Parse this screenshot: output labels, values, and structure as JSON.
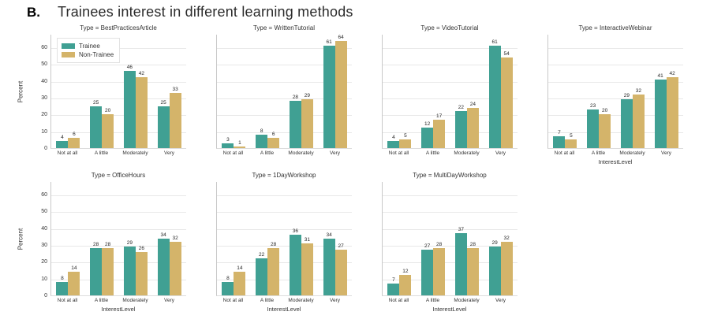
{
  "panel_label": "B.",
  "title": "Trainees interest in different learning methods",
  "legend": {
    "items": [
      {
        "label": "Trainee",
        "color": "#40A093"
      },
      {
        "label": "Non-Trainee",
        "color": "#D4B46A"
      }
    ]
  },
  "colors": {
    "trainee": "#40A093",
    "non_trainee": "#D4B46A",
    "gridline": "#E8E8E8",
    "text": "#333333"
  },
  "chart_data": {
    "type": "bar",
    "categories": [
      "Not at all",
      "A little",
      "Moderately",
      "Very"
    ],
    "xlabel": "InterestLevel",
    "ylabel": "Percent",
    "yticks": [
      0,
      10,
      20,
      30,
      40,
      50,
      60
    ],
    "ylim": [
      0,
      68
    ],
    "grid": "horizontal",
    "legend_position": "upper-left-first-facet",
    "series_names": [
      "Trainee",
      "Non-Trainee"
    ],
    "facets": [
      {
        "title": "Type = BestPracticesArticle",
        "show_xlabel": false,
        "series": [
          {
            "name": "Trainee",
            "values": [
              4,
              25,
              46,
              25
            ]
          },
          {
            "name": "Non-Trainee",
            "values": [
              6,
              20,
              42,
              33
            ]
          }
        ]
      },
      {
        "title": "Type = WrittenTutorial",
        "show_xlabel": false,
        "series": [
          {
            "name": "Trainee",
            "values": [
              3,
              8,
              28,
              61
            ]
          },
          {
            "name": "Non-Trainee",
            "values": [
              1,
              6,
              29,
              64
            ]
          }
        ]
      },
      {
        "title": "Type = VideoTutorial",
        "show_xlabel": false,
        "series": [
          {
            "name": "Trainee",
            "values": [
              4,
              12,
              22,
              61
            ]
          },
          {
            "name": "Non-Trainee",
            "values": [
              5,
              17,
              24,
              54
            ]
          }
        ]
      },
      {
        "title": "Type = InteractiveWebinar",
        "show_xlabel": true,
        "series": [
          {
            "name": "Trainee",
            "values": [
              7,
              23,
              29,
              41
            ]
          },
          {
            "name": "Non-Trainee",
            "values": [
              5,
              20,
              32,
              42
            ]
          }
        ]
      },
      {
        "title": "Type = OfficeHours",
        "show_xlabel": true,
        "series": [
          {
            "name": "Trainee",
            "values": [
              8,
              28,
              29,
              34
            ]
          },
          {
            "name": "Non-Trainee",
            "values": [
              14,
              28,
              26,
              32
            ]
          }
        ]
      },
      {
        "title": "Type = 1DayWorkshop",
        "show_xlabel": true,
        "series": [
          {
            "name": "Trainee",
            "values": [
              8,
              22,
              36,
              34
            ]
          },
          {
            "name": "Non-Trainee",
            "values": [
              14,
              28,
              31,
              27
            ]
          }
        ]
      },
      {
        "title": "Type = MultiDayWorkshop",
        "show_xlabel": true,
        "series": [
          {
            "name": "Trainee",
            "values": [
              7,
              27,
              37,
              29
            ]
          },
          {
            "name": "Non-Trainee",
            "values": [
              12,
              28,
              28,
              32
            ]
          }
        ]
      }
    ]
  }
}
